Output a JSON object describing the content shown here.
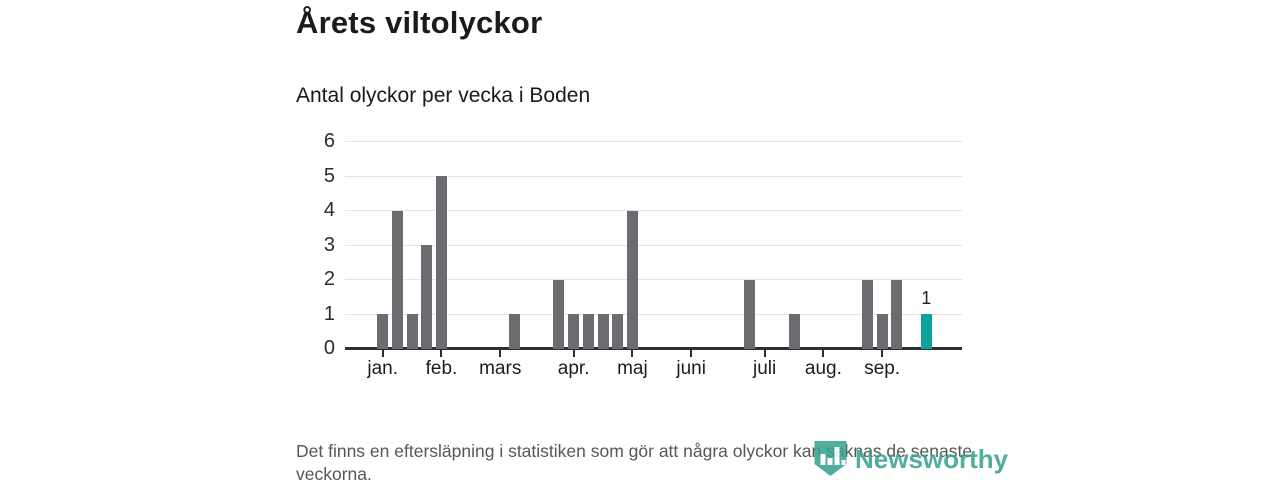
{
  "header": {
    "title": "Årets viltolyckor",
    "subtitle": "Antal olyckor per vecka i Boden"
  },
  "footer": {
    "text": "Det finns en eftersläpning i statistiken som gör att några olyckor kan saknas de senaste veckorna."
  },
  "logo": {
    "name": "Newsworthy",
    "color": "#38a18e"
  },
  "chart_data": {
    "type": "bar",
    "title": "Årets viltolyckor",
    "subtitle": "Antal olyckor per vecka i Boden",
    "x_unit": "vecka",
    "n_weeks": 38,
    "values": [
      1,
      4,
      1,
      3,
      5,
      0,
      0,
      0,
      0,
      1,
      0,
      0,
      2,
      1,
      1,
      1,
      1,
      4,
      0,
      0,
      0,
      0,
      0,
      0,
      0,
      2,
      0,
      0,
      1,
      0,
      0,
      0,
      0,
      2,
      1,
      2,
      0,
      1
    ],
    "highlight_index": 37,
    "highlight_label": "1",
    "month_ticks": [
      {
        "label": "jan.",
        "week_index": 0
      },
      {
        "label": "feb.",
        "week_index": 4
      },
      {
        "label": "mars",
        "week_index": 8
      },
      {
        "label": "apr.",
        "week_index": 13
      },
      {
        "label": "maj",
        "week_index": 17
      },
      {
        "label": "juni",
        "week_index": 21
      },
      {
        "label": "juli",
        "week_index": 26
      },
      {
        "label": "aug.",
        "week_index": 30
      },
      {
        "label": "sep.",
        "week_index": 34
      }
    ],
    "y_ticks": [
      0,
      1,
      2,
      3,
      4,
      5,
      6
    ],
    "ylim": [
      0,
      6
    ],
    "grid": true,
    "legend": false,
    "colors": {
      "bar": "#6b6b70",
      "highlight": "#0aa29c",
      "gridline": "#e4e4e4",
      "axis": "#2f2f33",
      "label": "#222222"
    }
  }
}
